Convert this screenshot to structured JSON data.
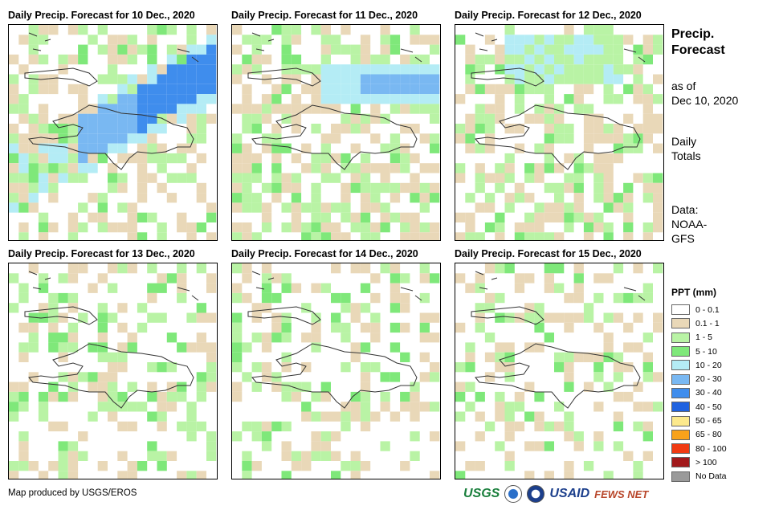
{
  "panels": [
    {
      "title": "Daily Precip. Forecast for 10 Dec., 2020"
    },
    {
      "title": "Daily Precip. Forecast for 11 Dec., 2020"
    },
    {
      "title": "Daily Precip. Forecast for 12 Dec., 2020"
    },
    {
      "title": "Daily Precip. Forecast for 13 Dec., 2020"
    },
    {
      "title": "Daily Precip. Forecast for 14 Dec., 2020"
    },
    {
      "title": "Daily Precip. Forecast for 15 Dec., 2020"
    }
  ],
  "sidebar": {
    "title_line1": "Precip.",
    "title_line2": "Forecast",
    "asof_line1": "as of",
    "asof_line2": "Dec 10, 2020",
    "totals_line1": "Daily",
    "totals_line2": "Totals",
    "data_line1": "Data:",
    "data_line2": "NOAA-",
    "data_line3": "GFS"
  },
  "legend": {
    "title": "PPT (mm)",
    "items": [
      {
        "label": "0 - 0.1",
        "color": "#ffffff"
      },
      {
        "label": "0.1 - 1",
        "color": "#e9d8b8"
      },
      {
        "label": "1 - 5",
        "color": "#b9f3a5"
      },
      {
        "label": "5 - 10",
        "color": "#7fe87a"
      },
      {
        "label": "10 - 20",
        "color": "#b4ecf5"
      },
      {
        "label": "20 - 30",
        "color": "#79b8f2"
      },
      {
        "label": "30 - 40",
        "color": "#3f8ded"
      },
      {
        "label": "40 - 50",
        "color": "#1f62e0"
      },
      {
        "label": "50 - 65",
        "color": "#fce98c"
      },
      {
        "label": "65 - 80",
        "color": "#f8a21b"
      },
      {
        "label": "80 - 100",
        "color": "#f03a12"
      },
      {
        "label": "> 100",
        "color": "#a2191b"
      },
      {
        "label": "No Data",
        "color": "#9a9a9a"
      }
    ]
  },
  "credit": "Map produced by USGS/EROS",
  "logos": {
    "usgs": "USGS",
    "usaid": "USAID",
    "fewsnet": "FEWS NET"
  }
}
